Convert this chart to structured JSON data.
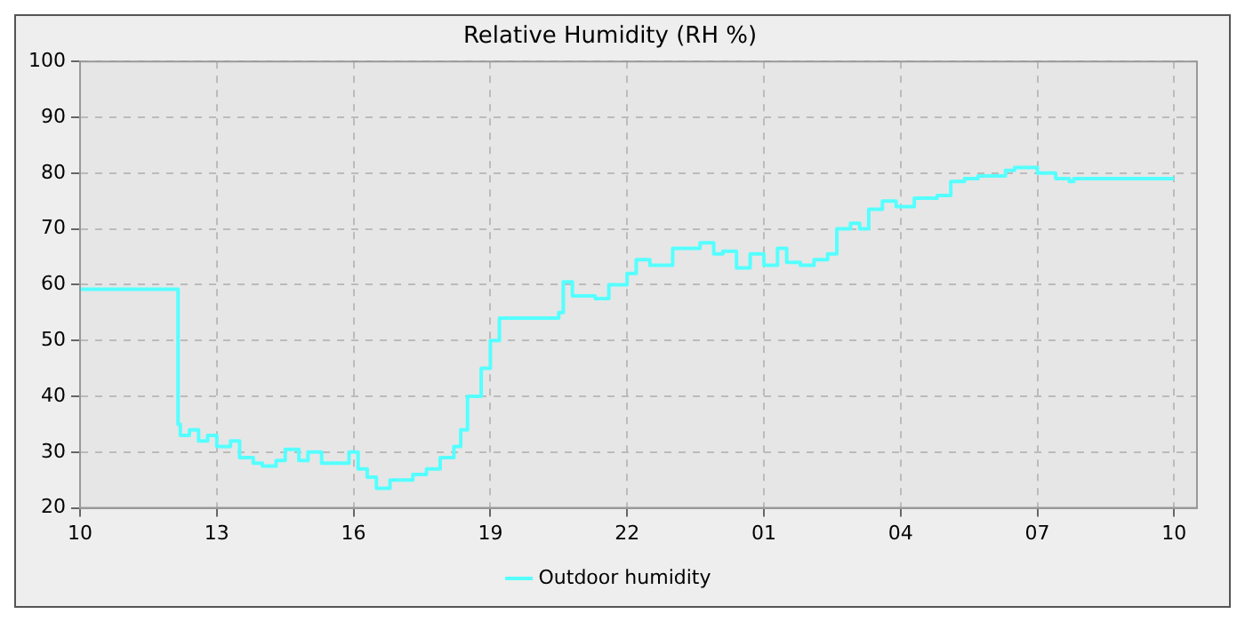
{
  "chart_data": {
    "type": "step",
    "title": "Relative Humidity (RH %)",
    "x": [
      "--01-01T10:00",
      "--01-01T12:09",
      "--01-01T12:12",
      "--01-01T12:24",
      "--01-01T12:36",
      "--01-01T12:48",
      "--01-01T13:00",
      "--01-01T13:18",
      "--01-01T13:30",
      "--01-01T13:48",
      "--01-01T14:00",
      "--01-01T14:18",
      "--01-01T14:30",
      "--01-01T14:48",
      "--01-01T15:00",
      "--01-01T15:18",
      "--01-01T15:36",
      "--01-01T15:54",
      "--01-01T16:06",
      "--01-01T16:18",
      "--01-01T16:30",
      "--01-01T16:48",
      "--01-01T17:00",
      "--01-01T17:18",
      "--01-01T17:36",
      "--01-01T17:54",
      "--01-01T18:12",
      "--01-01T18:21",
      "--01-01T18:30",
      "--01-01T18:48",
      "--01-01T19:00",
      "--01-01T19:12",
      "--01-01T19:30",
      "--01-01T20:00",
      "--01-01T20:30",
      "--01-01T20:36",
      "--01-01T20:48",
      "--01-01T21:06",
      "--01-01T21:18",
      "--01-01T21:36",
      "--01-01T22:00",
      "--01-01T22:12",
      "--01-01T22:30",
      "--01-01T22:48",
      "--01-01T23:00",
      "--01-01T23:18",
      "--01-01T23:36",
      "--01-01T23:54",
      "--01-02T00:06",
      "--01-02T00:24",
      "--01-02T00:42",
      "--01-02T01:00",
      "--01-02T01:18",
      "--01-02T01:30",
      "--01-02T01:48",
      "--01-02T02:06",
      "--01-02T02:24",
      "--01-02T02:36",
      "--01-02T02:54",
      "--01-02T03:06",
      "--01-02T03:18",
      "--01-02T03:36",
      "--01-02T03:54",
      "--01-02T04:18",
      "--01-02T04:48",
      "--01-02T05:06",
      "--01-02T05:24",
      "--01-02T05:42",
      "--01-02T06:18",
      "--01-02T06:30",
      "--01-02T07:00",
      "--01-02T07:24",
      "--01-02T07:42",
      "--01-02T07:48",
      "--01-02T10:00"
    ],
    "series": [
      {
        "name": "Outdoor humidity",
        "color": "#55ffff",
        "values": [
          59.2,
          35,
          33,
          34,
          32,
          33,
          31,
          32,
          29,
          28,
          27.5,
          28.5,
          30.5,
          28.5,
          30,
          28,
          28,
          30,
          27,
          25.5,
          23.5,
          25,
          25,
          26,
          27,
          29,
          31,
          34,
          40,
          45,
          50,
          54,
          54,
          54,
          55,
          60.5,
          58,
          58,
          57.5,
          60,
          62,
          64.5,
          63.5,
          63.5,
          66.5,
          66.5,
          67.5,
          65.5,
          66,
          63,
          65.5,
          63.5,
          66.5,
          64,
          63.5,
          64.5,
          65.5,
          70,
          71,
          70,
          73.5,
          75,
          74,
          75.5,
          76,
          78.5,
          79,
          79.5,
          80.5,
          81,
          80,
          79,
          78.5,
          79,
          79
        ]
      }
    ],
    "xlim": [
      "--01-01T10:00",
      "--01-02T10:30"
    ],
    "xticks": [
      {
        "value": "--01-01T10:00",
        "label": "10"
      },
      {
        "value": "--01-01T13:00",
        "label": "13"
      },
      {
        "value": "--01-01T16:00",
        "label": "16"
      },
      {
        "value": "--01-01T19:00",
        "label": "19"
      },
      {
        "value": "--01-01T22:00",
        "label": "22"
      },
      {
        "value": "--01-02T01:00",
        "label": "01"
      },
      {
        "value": "--01-02T04:00",
        "label": "04"
      },
      {
        "value": "--01-02T07:00",
        "label": "07"
      },
      {
        "value": "--01-02T10:00",
        "label": "10"
      }
    ],
    "ylim": [
      20,
      100
    ],
    "yticks": [
      20,
      30,
      40,
      50,
      60,
      70,
      80,
      90,
      100
    ],
    "grid": true,
    "legend": "bottom",
    "line_style": "solid",
    "marker": "none"
  }
}
